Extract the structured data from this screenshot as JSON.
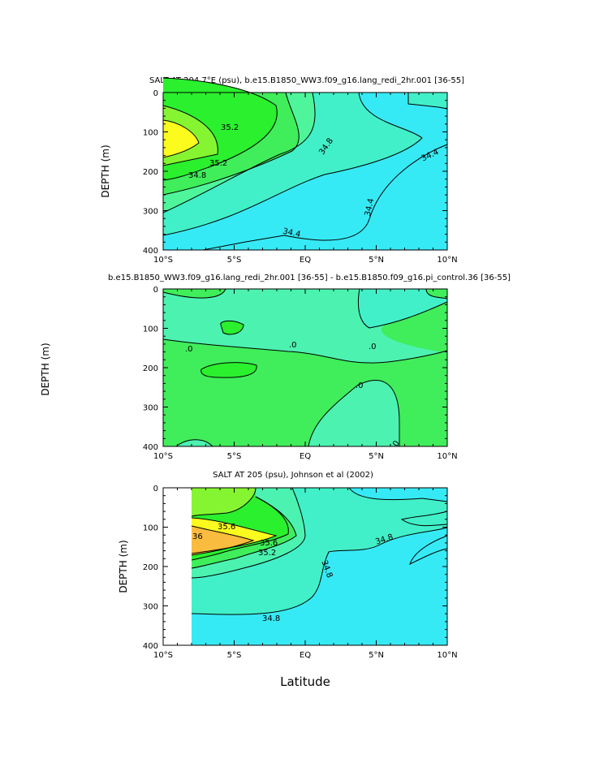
{
  "colors": {
    "cyan": "#36eaf5",
    "aqua": "#41f0c8",
    "teal": "#4cf2b0",
    "seafoam": "#4ff59a",
    "green": "#3fee5a",
    "bright_green": "#2af02d",
    "lime": "#86f531",
    "yellow": "#fbfb1e",
    "orange": "#f9bc3e",
    "line": "#000000"
  },
  "figure": {
    "xlabel": "Latitude",
    "y_axis_label_mid": "DEPTH (m)"
  },
  "chart_data": [
    {
      "type": "heatmap",
      "subtype": "contour",
      "title": "SALT AT 204.7°E (psu), b.e15.B1850_WW3.f09_g16.lang_redi_2hr.001 [36-55]",
      "ylabel": "DEPTH (m)",
      "xlabel": "",
      "xlim": [
        -10,
        10
      ],
      "ylim": [
        400,
        0
      ],
      "x_ticks": [
        "10°S",
        "5°S",
        "EQ",
        "5°N",
        "10°N"
      ],
      "y_ticks": [
        "0",
        "100",
        "200",
        "300",
        "400"
      ],
      "contour_labels": [
        "35.2",
        "35.2",
        "34.8",
        "34.8",
        "34.4",
        "34.4",
        "34.4"
      ],
      "levels": [
        34.4,
        34.6,
        34.8,
        35.0,
        35.2,
        35.4
      ]
    },
    {
      "type": "heatmap",
      "subtype": "contour",
      "title": "b.e15.B1850_WW3.f09_g16.lang_redi_2hr.001 [36-55] - b.e15.B1850.f09_g16.pi_control.36 [36-55]",
      "ylabel": "DEPTH (m)",
      "xlabel": "",
      "xlim": [
        -10,
        10
      ],
      "ylim": [
        400,
        0
      ],
      "x_ticks": [
        "10°S",
        "5°S",
        "EQ",
        "5°N",
        "10°N"
      ],
      "y_ticks": [
        "0",
        "100",
        "200",
        "300",
        "400"
      ],
      "contour_labels": [
        ".0",
        ".0",
        ".0",
        ".0",
        "0"
      ],
      "levels": [
        -0.1,
        0.0,
        0.1
      ]
    },
    {
      "type": "heatmap",
      "subtype": "contour",
      "title": "SALT AT 205 (psu), Johnson et al (2002)",
      "ylabel": "DEPTH (m)",
      "xlabel": "Latitude",
      "xlim": [
        -10,
        10
      ],
      "ylim": [
        400,
        0
      ],
      "data_start_x": -8,
      "x_ticks": [
        "10°S",
        "5°S",
        "EQ",
        "5°N",
        "10°N"
      ],
      "y_ticks": [
        "0",
        "100",
        "200",
        "300",
        "400"
      ],
      "contour_labels": [
        "35.6",
        "36",
        "35.6",
        "35.2",
        "34.8",
        "34.8",
        "34.8"
      ],
      "levels": [
        34.8,
        35.0,
        35.2,
        35.4,
        35.6,
        35.8,
        36.0
      ]
    }
  ]
}
